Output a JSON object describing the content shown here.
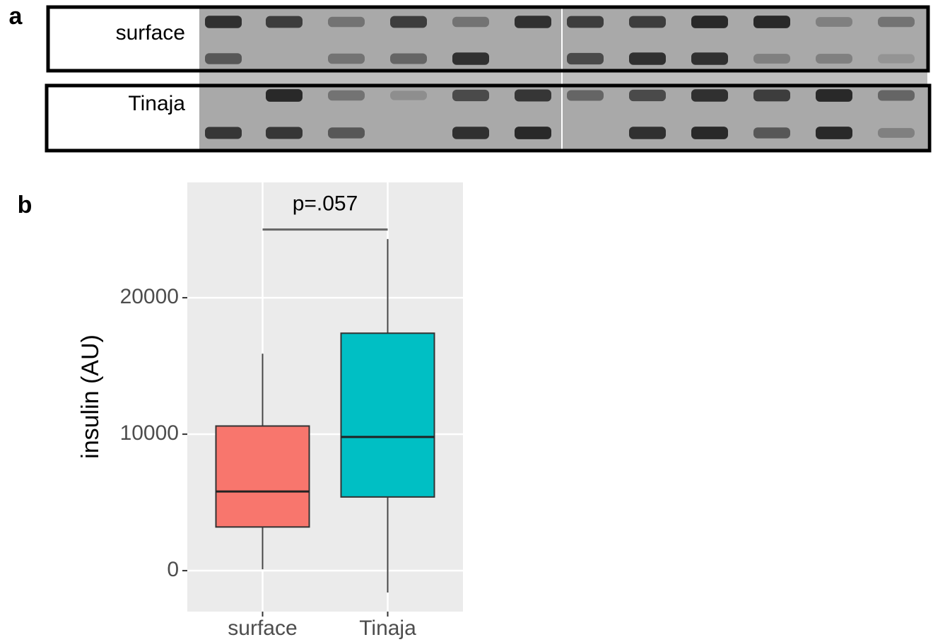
{
  "panel_labels": [
    "a",
    "b"
  ],
  "blot_rows": [
    "surface",
    "Tinaja"
  ],
  "chart_data": {
    "type": "box",
    "y_label": "insulin (AU)",
    "categories": [
      "surface",
      "Tinaja"
    ],
    "boxes": [
      {
        "color": "#f8766d",
        "whisker_low": 100,
        "q1": 3200,
        "median": 5800,
        "q3": 10600,
        "whisker_high": 15900
      },
      {
        "color": "#00bfc4",
        "whisker_low": -1600,
        "q1": 5400,
        "median": 9800,
        "q3": 17400,
        "whisker_high": 24300
      }
    ],
    "annotation": {
      "text": "p=.057",
      "y": 25000
    },
    "ylim": [
      -3000,
      28450
    ],
    "yticks": [
      0,
      10000,
      20000
    ],
    "grid": true
  }
}
